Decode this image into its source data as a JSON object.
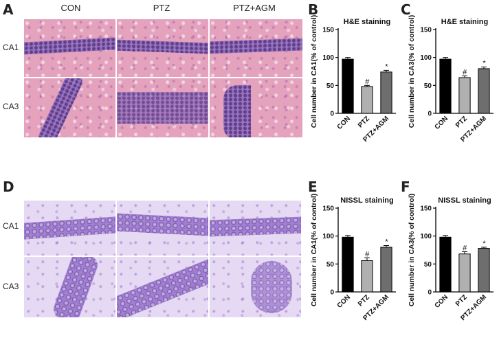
{
  "panels": {
    "a": "A",
    "b": "B",
    "c": "C",
    "d": "D",
    "e": "E",
    "f": "F"
  },
  "micrographs": {
    "columns": [
      "CON",
      "PTZ",
      "PTZ+AGM"
    ],
    "rows": [
      "CA1",
      "CA3"
    ],
    "top_colors": {
      "he_bg": "#e4a2bd",
      "nissl_bg": "#e6d9f3"
    }
  },
  "chart_data": [
    {
      "id": "B",
      "type": "bar",
      "title": "H&E staining",
      "ylabel": "Cell number in CA1(% of control)",
      "categories": [
        "CON",
        "PTZ",
        "PTZ+AGM"
      ],
      "values": [
        97,
        48,
        74
      ],
      "errors": [
        3,
        2,
        3
      ],
      "sig": [
        "",
        "#",
        "*"
      ],
      "colors": [
        "#000000",
        "#b0b0b0",
        "#6e6e6e"
      ],
      "ylim": [
        0,
        150
      ],
      "yticks": [
        0,
        50,
        100,
        150
      ]
    },
    {
      "id": "C",
      "type": "bar",
      "title": "H&E staining",
      "ylabel": "Cell number in CA3(% of control)",
      "categories": [
        "CON",
        "PTZ",
        "PTZ+AGM"
      ],
      "values": [
        97,
        64,
        80
      ],
      "errors": [
        3,
        3,
        3
      ],
      "sig": [
        "",
        "#",
        "*"
      ],
      "colors": [
        "#000000",
        "#b0b0b0",
        "#6e6e6e"
      ],
      "ylim": [
        0,
        150
      ],
      "yticks": [
        0,
        50,
        100,
        150
      ]
    },
    {
      "id": "E",
      "type": "bar",
      "title": "NISSL staining",
      "ylabel": "Cell number in CA1(% of control)",
      "categories": [
        "CON",
        "PTZ",
        "PTZ+AGM"
      ],
      "values": [
        98,
        56,
        80
      ],
      "errors": [
        3,
        5,
        3
      ],
      "sig": [
        "",
        "#",
        "*"
      ],
      "colors": [
        "#000000",
        "#b0b0b0",
        "#6e6e6e"
      ],
      "ylim": [
        0,
        150
      ],
      "yticks": [
        0,
        50,
        100,
        150
      ]
    },
    {
      "id": "F",
      "type": "bar",
      "title": "NISSL staining",
      "ylabel": "Cell number in CA3(% of control)",
      "categories": [
        "CON",
        "PTZ",
        "PTZ+AGM"
      ],
      "values": [
        98,
        68,
        78
      ],
      "errors": [
        3,
        4,
        2
      ],
      "sig": [
        "",
        "#",
        "*"
      ],
      "colors": [
        "#000000",
        "#b0b0b0",
        "#6e6e6e"
      ],
      "ylim": [
        0,
        150
      ],
      "yticks": [
        0,
        50,
        100,
        150
      ]
    }
  ]
}
